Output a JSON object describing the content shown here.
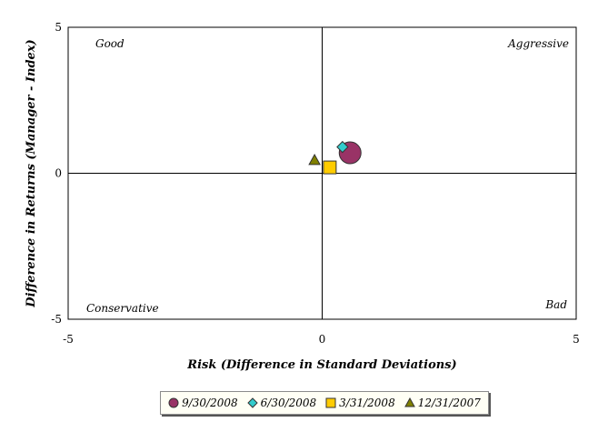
{
  "chart_data": {
    "type": "scatter",
    "xlabel": "Risk (Difference in Standard Deviations)",
    "ylabel": "Difference in Returns (Manager - Index)",
    "xlim": [
      -5,
      5
    ],
    "ylim": [
      -5,
      5
    ],
    "x_ticks": [
      "-5",
      "0",
      "5"
    ],
    "y_ticks": [
      "5",
      "0",
      "-5"
    ],
    "quadrant_labels": {
      "top_left": "Good",
      "top_right": "Aggressive",
      "bottom_left": "Conservative",
      "bottom_right": "Bad"
    },
    "grid": false,
    "legend_position": "bottom",
    "series": [
      {
        "name": "9/30/2008",
        "marker": "circle",
        "color": "#993366",
        "x": 0.55,
        "y": 0.7
      },
      {
        "name": "6/30/2008",
        "marker": "diamond",
        "color": "#33cccc",
        "x": 0.4,
        "y": 0.9
      },
      {
        "name": "3/31/2008",
        "marker": "square",
        "color": "#ffcc00",
        "x": 0.15,
        "y": 0.2
      },
      {
        "name": "12/31/2007",
        "marker": "triangle",
        "color": "#808000",
        "x": -0.15,
        "y": 0.45
      }
    ]
  }
}
